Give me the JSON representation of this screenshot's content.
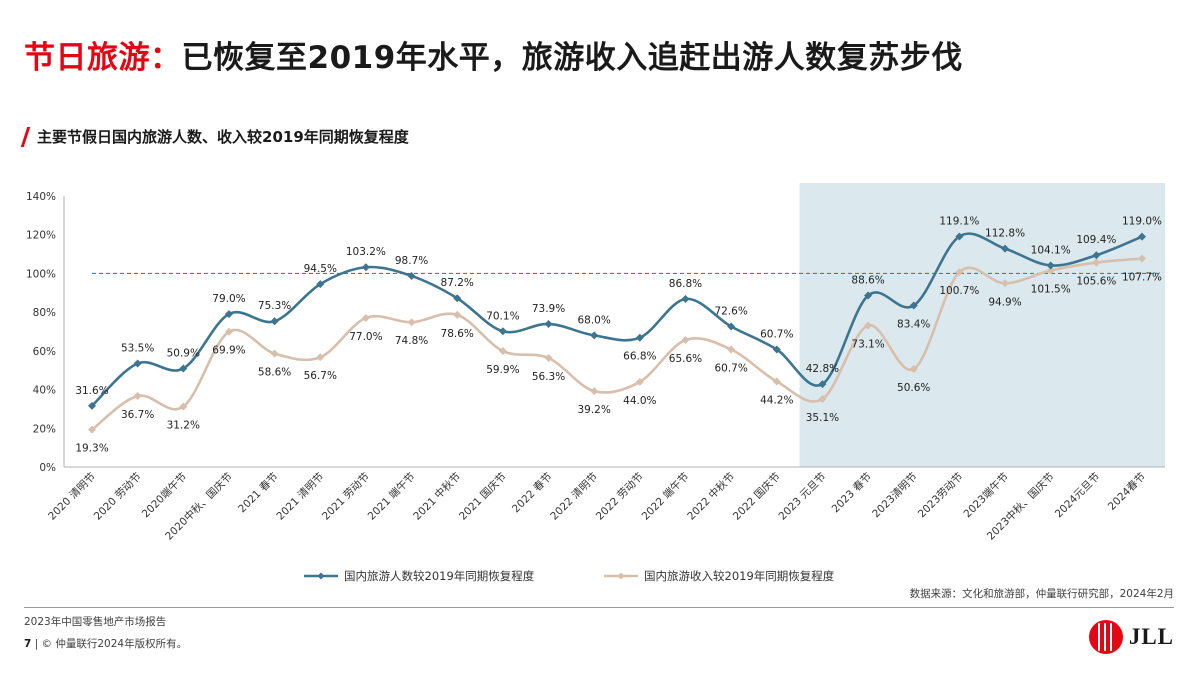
{
  "header": {
    "title_accent": "节日旅游：",
    "title_rest": "已恢复至2019年水平，旅游收入追赶出游人数复苏步伐"
  },
  "subtitle": "主要节假日国内旅游人数、收入较2019年同期恢复程度",
  "source": "数据来源：文化和旅游部，仲量联行研究部，2024年2月",
  "footer": {
    "report": "2023年中国零售地产市场报告",
    "page": "7",
    "copyright": "© 仲量联行2024年版权所有。"
  },
  "logo": {
    "text": "JLL",
    "icon": "jll-flame-icon"
  },
  "colors": {
    "accent": "#e30613",
    "trips": "#3d7590",
    "revenue": "#d8bfab",
    "highlight": "#dbe9ef",
    "reference": "#3d7fb0"
  },
  "chart_data": {
    "type": "line",
    "title": "主要节假日国内旅游人数、收入较2019年同期恢复程度",
    "categories": [
      "2020 清明节",
      "2020 劳动节",
      "2020端午节",
      "2020中秋、国庆节",
      "2021 春节",
      "2021 清明节",
      "2021 劳动节",
      "2021 端午节",
      "2021 中秋节",
      "2021 国庆节",
      "2022 春节",
      "2022 清明节",
      "2022 劳动节",
      "2022 端午节",
      "2022 中秋节",
      "2022 国庆节",
      "2023 元旦节",
      "2023 春节",
      "2023清明节",
      "2023劳动节",
      "2023端午节",
      "2023中秋、国庆节",
      "2024元旦节",
      "2024春节"
    ],
    "series": [
      {
        "name": "国内旅游人数较2019年同期恢复程度",
        "values": [
          31.6,
          53.5,
          50.9,
          79.0,
          75.3,
          94.5,
          103.2,
          98.7,
          87.2,
          70.1,
          73.9,
          68.0,
          66.8,
          86.8,
          72.6,
          60.7,
          42.8,
          88.6,
          83.4,
          119.1,
          112.8,
          104.1,
          109.4,
          119.0
        ],
        "labels": [
          "31.6%",
          "53.5%",
          "50.9%",
          "79.0%",
          "75.3%",
          "94.5%",
          "103.2%",
          "98.7%",
          "87.2%",
          "70.1%",
          "73.9%",
          "68.0%",
          "66.8%",
          "86.8%",
          "72.6%",
          "60.7%",
          "42.8%",
          "88.6%",
          "83.4%",
          "119.1%",
          "112.8%",
          "104.1%",
          "109.4%",
          "119.0%"
        ]
      },
      {
        "name": "国内旅游收入较2019年同期恢复程度",
        "values": [
          19.3,
          36.7,
          31.2,
          69.9,
          58.6,
          56.7,
          77.0,
          74.8,
          78.6,
          59.9,
          56.3,
          39.2,
          44.0,
          65.6,
          60.7,
          44.2,
          35.1,
          73.1,
          50.6,
          100.7,
          94.9,
          101.5,
          105.6,
          107.7
        ],
        "labels": [
          "19.3%",
          "36.7%",
          "31.2%",
          "69.9%",
          "58.6%",
          "56.7%",
          "77.0%",
          "74.8%",
          "78.6%",
          "59.9%",
          "56.3%",
          "39.2%",
          "44.0%",
          "65.6%",
          "60.7%",
          "44.2%",
          "35.1%",
          "73.1%",
          "50.6%",
          "100.7%",
          "94.9%",
          "101.5%",
          "105.6%",
          "107.7%"
        ]
      }
    ],
    "y_ticks": [
      "0%",
      "20%",
      "40%",
      "60%",
      "80%",
      "100%",
      "120%",
      "140%"
    ],
    "ylim": [
      0,
      140
    ],
    "reference_line": 100,
    "highlight_from": "2023 元旦节",
    "legend_position": "bottom",
    "grid": false
  }
}
